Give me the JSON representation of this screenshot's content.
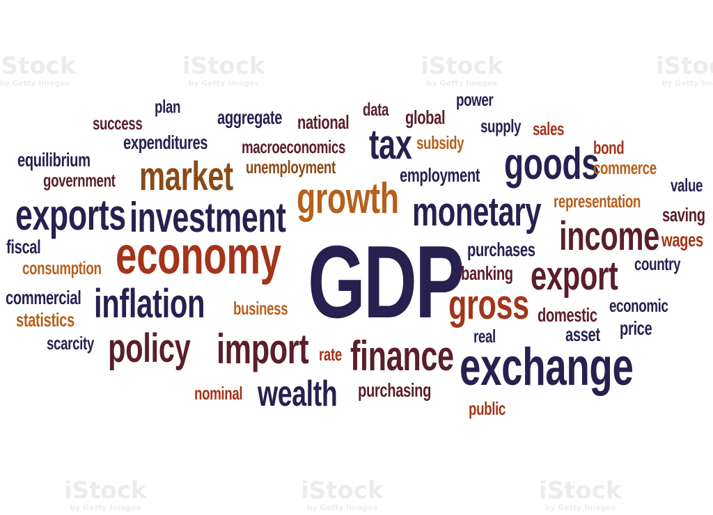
{
  "colors": {
    "navy": "#26214f",
    "maroon": "#5a1e2c",
    "red": "#a3341a",
    "orange": "#b5601c",
    "brown": "#8a4a18",
    "background": "#ffffff"
  },
  "watermark": {
    "brand": "iStock",
    "tagline": "by Getty Images"
  },
  "words": [
    {
      "text": "plan",
      "color": "navy"
    },
    {
      "text": "power",
      "color": "navy"
    },
    {
      "text": "success",
      "color": "maroon"
    },
    {
      "text": "aggregate",
      "color": "navy"
    },
    {
      "text": "data",
      "color": "maroon"
    },
    {
      "text": "global",
      "color": "maroon"
    },
    {
      "text": "national",
      "color": "maroon"
    },
    {
      "text": "supply",
      "color": "navy"
    },
    {
      "text": "sales",
      "color": "red"
    },
    {
      "text": "expenditures",
      "color": "navy"
    },
    {
      "text": "tax",
      "color": "navy"
    },
    {
      "text": "subsidy",
      "color": "orange"
    },
    {
      "text": "macroeconomics",
      "color": "maroon"
    },
    {
      "text": "bond",
      "color": "red"
    },
    {
      "text": "equilibrium",
      "color": "navy"
    },
    {
      "text": "goods",
      "color": "navy"
    },
    {
      "text": "unemployment",
      "color": "brown"
    },
    {
      "text": "commerce",
      "color": "orange"
    },
    {
      "text": "market",
      "color": "brown"
    },
    {
      "text": "employment",
      "color": "navy"
    },
    {
      "text": "government",
      "color": "maroon"
    },
    {
      "text": "value",
      "color": "navy"
    },
    {
      "text": "growth",
      "color": "orange"
    },
    {
      "text": "representation",
      "color": "orange"
    },
    {
      "text": "exports",
      "color": "navy"
    },
    {
      "text": "investment",
      "color": "navy"
    },
    {
      "text": "monetary",
      "color": "navy"
    },
    {
      "text": "saving",
      "color": "maroon"
    },
    {
      "text": "income",
      "color": "maroon"
    },
    {
      "text": "fiscal",
      "color": "navy"
    },
    {
      "text": "economy",
      "color": "red"
    },
    {
      "text": "wages",
      "color": "red"
    },
    {
      "text": "GDP",
      "color": "navy"
    },
    {
      "text": "purchases",
      "color": "navy"
    },
    {
      "text": "consumption",
      "color": "orange"
    },
    {
      "text": "country",
      "color": "navy"
    },
    {
      "text": "banking",
      "color": "maroon"
    },
    {
      "text": "export",
      "color": "maroon"
    },
    {
      "text": "commercial",
      "color": "navy"
    },
    {
      "text": "inflation",
      "color": "navy"
    },
    {
      "text": "economic",
      "color": "navy"
    },
    {
      "text": "gross",
      "color": "red"
    },
    {
      "text": "business",
      "color": "orange"
    },
    {
      "text": "domestic",
      "color": "maroon"
    },
    {
      "text": "statistics",
      "color": "orange"
    },
    {
      "text": "price",
      "color": "navy"
    },
    {
      "text": "real",
      "color": "navy"
    },
    {
      "text": "asset",
      "color": "navy"
    },
    {
      "text": "scarcity",
      "color": "navy"
    },
    {
      "text": "policy",
      "color": "maroon"
    },
    {
      "text": "import",
      "color": "maroon"
    },
    {
      "text": "rate",
      "color": "red"
    },
    {
      "text": "finance",
      "color": "maroon"
    },
    {
      "text": "exchange",
      "color": "navy"
    },
    {
      "text": "nominal",
      "color": "red"
    },
    {
      "text": "wealth",
      "color": "navy"
    },
    {
      "text": "purchasing",
      "color": "maroon"
    },
    {
      "text": "public",
      "color": "red"
    }
  ]
}
